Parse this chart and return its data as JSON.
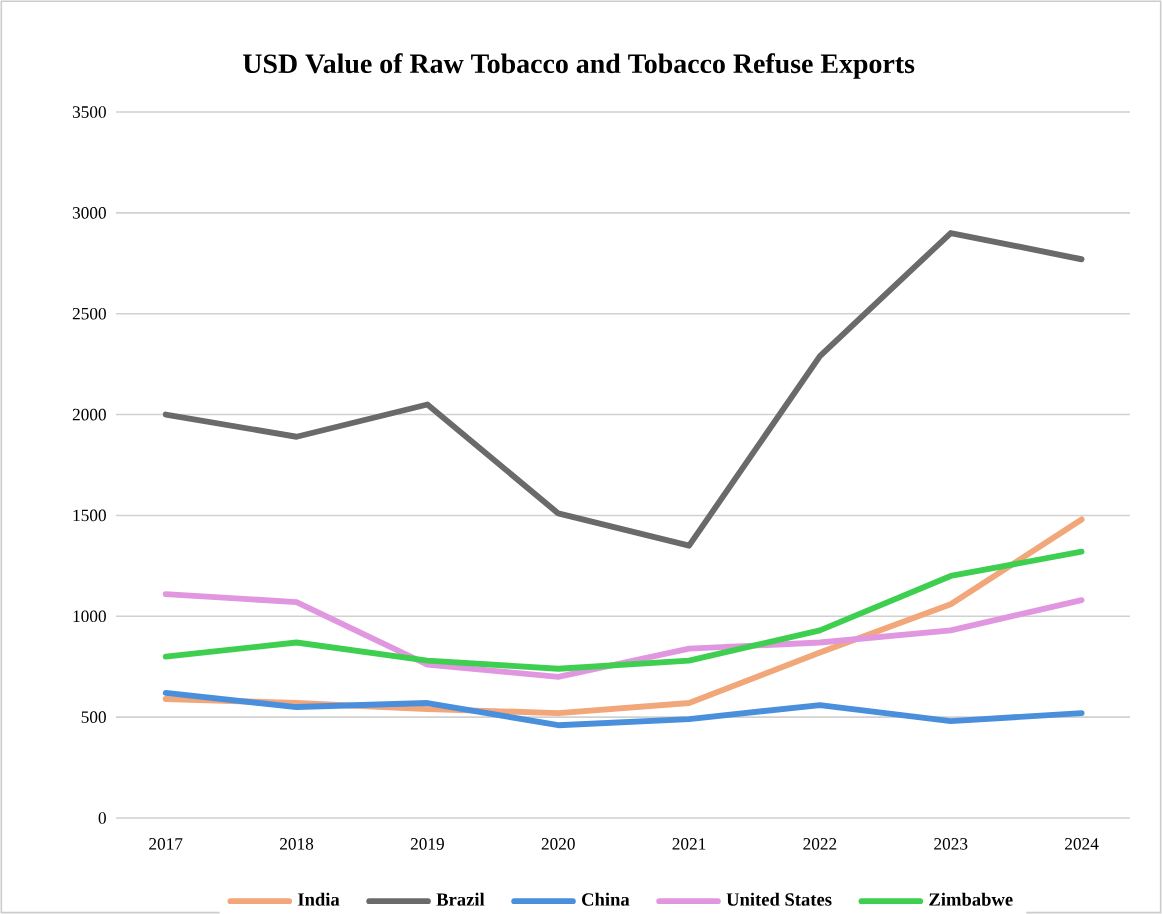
{
  "chart_data": {
    "type": "line",
    "title": "USD Value of Raw Tobacco and Tobacco Refuse Exports",
    "categories": [
      "2017",
      "2018",
      "2019",
      "2020",
      "2021",
      "2022",
      "2023",
      "2024"
    ],
    "series": [
      {
        "name": "India",
        "color": "#f2a77a",
        "values": [
          590,
          570,
          540,
          520,
          570,
          820,
          1060,
          1480
        ]
      },
      {
        "name": "Brazil",
        "color": "#6a6a6a",
        "values": [
          2000,
          1890,
          2050,
          1510,
          1350,
          2290,
          2900,
          2770
        ]
      },
      {
        "name": "China",
        "color": "#4a8fdc",
        "values": [
          620,
          550,
          570,
          460,
          490,
          560,
          480,
          520
        ]
      },
      {
        "name": "United States",
        "color": "#e097e0",
        "values": [
          1110,
          1070,
          760,
          700,
          840,
          870,
          930,
          1080
        ]
      },
      {
        "name": "Zimbabwe",
        "color": "#3ecf50",
        "values": [
          800,
          870,
          780,
          740,
          780,
          930,
          1200,
          1320
        ]
      }
    ],
    "ylim": [
      0,
      3500
    ],
    "yticks": [
      0,
      500,
      1000,
      1500,
      2000,
      2500,
      3000,
      3500
    ],
    "grid": "y",
    "legend": "bottom"
  }
}
